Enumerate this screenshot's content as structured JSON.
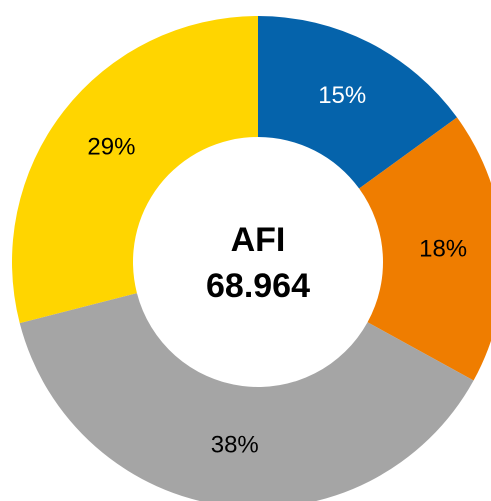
{
  "chart_data": {
    "type": "donut",
    "values": [
      15,
      18,
      38,
      29
    ],
    "value_labels": [
      "15%",
      "18%",
      "38%",
      "29%"
    ],
    "colors": [
      "#0563ab",
      "#ef7d00",
      "#a5a5a5",
      "#ffd500"
    ],
    "label_colors": [
      "#ffffff",
      "#000000",
      "#000000",
      "#000000"
    ],
    "center_title": "AFI",
    "center_value": "68.964"
  }
}
